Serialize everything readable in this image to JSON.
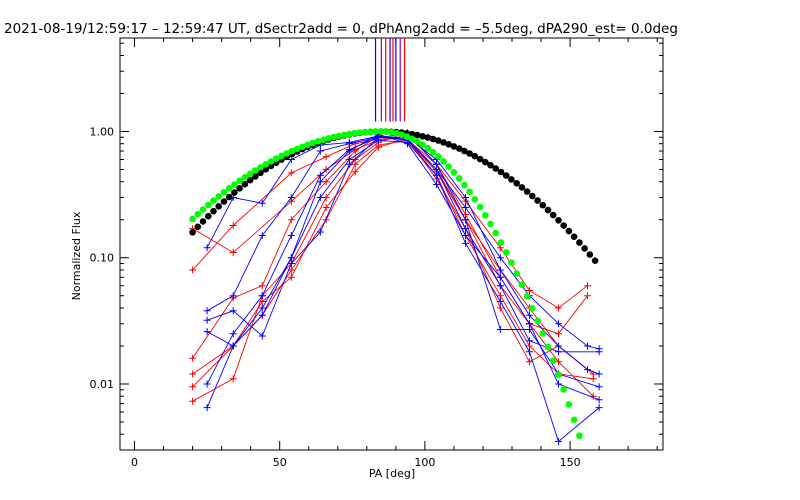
{
  "chart_data": {
    "type": "line",
    "title": "2021-08-19/12:59:17 – 12:59:47 UT, dSectr2add = 0, dPhAng2add = –5.5deg, dPA290_est=  0.0deg",
    "xlabel": "PA [deg]",
    "ylabel": "Normalized Flux",
    "xlim": [
      -5,
      182
    ],
    "ylim": [
      0.003,
      5.5
    ],
    "yscale": "log",
    "grid": false,
    "xticks": [
      0,
      50,
      100,
      150
    ],
    "xtick_labels": [
      "0",
      "50",
      "100",
      "150"
    ],
    "yticks": [
      0.01,
      0.1,
      1.0
    ],
    "ytick_labels": [
      "0.01",
      "0.10",
      "1.00"
    ],
    "colors": {
      "red": "#ff0000",
      "blue": "#0000ff",
      "black": "#000000",
      "green": "#00ff00",
      "purple": "#990099"
    },
    "model_curves": [
      {
        "color": "black",
        "marker": "dot",
        "x_start": 20,
        "x_end": 160,
        "step": 1.8,
        "peak_x": 85,
        "peak_y": 1.0,
        "log10_drop_per_deg2": 0.000189
      },
      {
        "color": "green",
        "marker": "dot",
        "x_start": 20,
        "x_end": 155,
        "step": 1.8,
        "peak_x": 85,
        "peak_y": 1.0,
        "log10_drop_per_deg2_left": 0.000164,
        "log10_drop_per_deg2_right": 0.000518
      }
    ],
    "vertical_markers": [
      {
        "x": 83.0,
        "color": "blue"
      },
      {
        "x": 85.0,
        "color": "purple"
      },
      {
        "x": 86.5,
        "color": "red"
      },
      {
        "x": 88.0,
        "color": "blue"
      },
      {
        "x": 89.0,
        "color": "red"
      },
      {
        "x": 90.0,
        "color": "blue"
      },
      {
        "x": 91.5,
        "color": "purple"
      },
      {
        "x": 93.0,
        "color": "red"
      }
    ],
    "series": [
      {
        "color": "red",
        "x": [
          20,
          34,
          54,
          66,
          76,
          84,
          93,
          104,
          114,
          126,
          136,
          146,
          156
        ],
        "y": [
          0.08,
          0.18,
          0.47,
          0.63,
          0.8,
          0.87,
          0.9,
          0.55,
          0.28,
          0.12,
          0.055,
          0.04,
          0.06
        ]
      },
      {
        "color": "red",
        "x": [
          20,
          34,
          54,
          66,
          76,
          84,
          93,
          104,
          114,
          126,
          136,
          146,
          156
        ],
        "y": [
          0.17,
          0.11,
          0.28,
          0.5,
          0.72,
          0.85,
          0.9,
          0.48,
          0.2,
          0.06,
          0.03,
          0.025,
          0.05
        ]
      },
      {
        "color": "red",
        "x": [
          20,
          34,
          44,
          54,
          66,
          76,
          84,
          94,
          104,
          114,
          126,
          136,
          146,
          158
        ],
        "y": [
          0.016,
          0.048,
          0.06,
          0.2,
          0.4,
          0.7,
          0.92,
          0.85,
          0.5,
          0.2,
          0.08,
          0.04,
          0.02,
          0.012
        ]
      },
      {
        "color": "red",
        "x": [
          20,
          34,
          44,
          54,
          66,
          76,
          84,
          94,
          104,
          114,
          126,
          136,
          146,
          158
        ],
        "y": [
          0.0073,
          0.011,
          0.05,
          0.09,
          0.3,
          0.6,
          0.82,
          0.98,
          0.55,
          0.22,
          0.07,
          0.03,
          0.015,
          0.008
        ]
      },
      {
        "color": "red",
        "x": [
          20,
          34,
          44,
          54,
          66,
          76,
          84,
          94,
          104,
          114,
          126,
          136,
          146,
          158
        ],
        "y": [
          0.0095,
          0.02,
          0.035,
          0.08,
          0.2,
          0.55,
          0.78,
          0.85,
          0.45,
          0.15,
          0.05,
          0.02,
          0.012,
          0.011
        ]
      },
      {
        "color": "red",
        "x": [
          20,
          34,
          44,
          54,
          66,
          76,
          84,
          94,
          104,
          114,
          126,
          136,
          146
        ],
        "y": [
          0.012,
          0.02,
          0.045,
          0.07,
          0.25,
          0.48,
          0.75,
          0.88,
          0.42,
          0.17,
          0.04,
          0.015,
          0.02
        ]
      },
      {
        "color": "blue",
        "x": [
          25,
          34,
          44,
          54,
          64,
          74,
          84,
          94,
          104,
          114,
          126,
          136,
          146,
          156,
          160
        ],
        "y": [
          0.12,
          0.3,
          0.27,
          0.6,
          0.78,
          0.82,
          0.92,
          0.85,
          0.5,
          0.25,
          0.1,
          0.05,
          0.03,
          0.02,
          0.019
        ]
      },
      {
        "color": "blue",
        "x": [
          25,
          34,
          44,
          54,
          64,
          74,
          84,
          94,
          104,
          114,
          126,
          136,
          146,
          156,
          160
        ],
        "y": [
          0.038,
          0.05,
          0.15,
          0.3,
          0.7,
          0.8,
          0.9,
          0.9,
          0.6,
          0.3,
          0.08,
          0.035,
          0.02,
          0.013,
          0.012
        ]
      },
      {
        "color": "blue",
        "x": [
          25,
          34,
          44,
          54,
          64,
          74,
          84,
          94,
          104,
          114,
          126,
          136,
          146,
          160
        ],
        "y": [
          0.032,
          0.038,
          0.024,
          0.09,
          0.16,
          0.55,
          0.9,
          0.95,
          0.55,
          0.2,
          0.027,
          0.027,
          0.012,
          0.0095
        ]
      },
      {
        "color": "blue",
        "x": [
          25,
          34,
          44,
          54,
          64,
          74,
          84,
          94,
          104,
          114,
          126,
          136,
          146,
          160
        ],
        "y": [
          0.026,
          0.02,
          0.04,
          0.1,
          0.3,
          0.6,
          0.85,
          0.82,
          0.45,
          0.13,
          0.045,
          0.018,
          0.0035,
          0.0065
        ]
      },
      {
        "color": "blue",
        "x": [
          25,
          34,
          44,
          54,
          64,
          74,
          84,
          94,
          104,
          114,
          126,
          136,
          146,
          160
        ],
        "y": [
          0.0065,
          0.02,
          0.035,
          0.1,
          0.4,
          0.7,
          0.95,
          0.8,
          0.38,
          0.15,
          0.07,
          0.03,
          0.01,
          0.0075
        ]
      },
      {
        "color": "blue",
        "x": [
          25,
          34,
          44,
          54,
          64,
          74,
          84,
          94,
          104,
          114,
          126,
          136,
          146,
          160
        ],
        "y": [
          0.01,
          0.025,
          0.05,
          0.15,
          0.45,
          0.72,
          0.9,
          0.88,
          0.5,
          0.17,
          0.06,
          0.022,
          0.018,
          0.018
        ]
      }
    ]
  }
}
